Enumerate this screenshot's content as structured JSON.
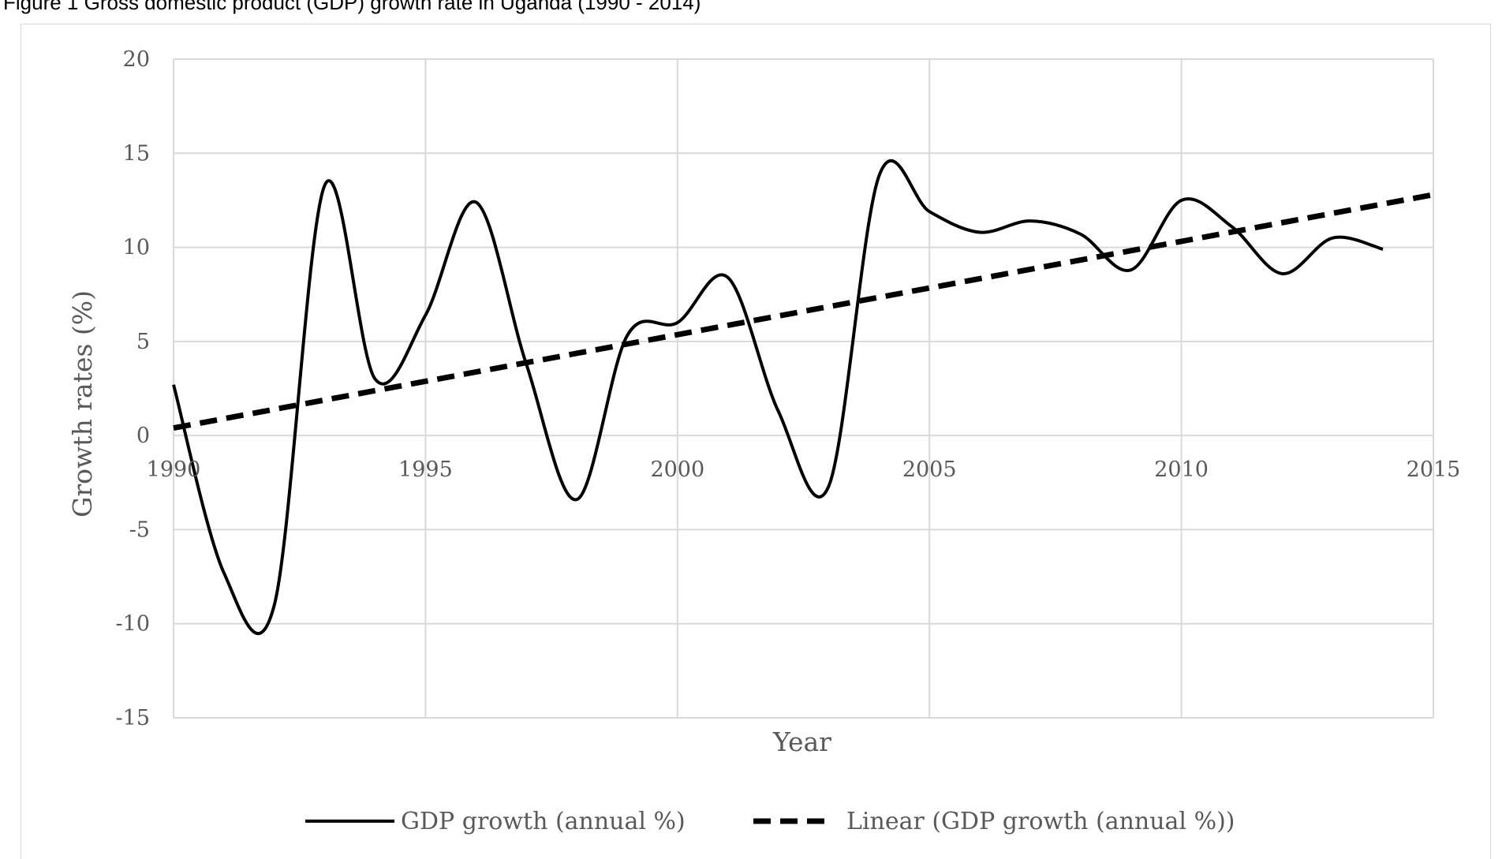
{
  "figure": {
    "caption": "Figure 1 Gross domestic product (GDP) growth rate in Uganda (1990 - 2014)"
  },
  "colors": {
    "grid": "#d9d9d9",
    "series": "#000000",
    "text": "#595959"
  },
  "chart_data": {
    "type": "line",
    "title": "",
    "xlabel": "Year",
    "ylabel": "Growth rates (%)",
    "xlim": [
      1990,
      2015
    ],
    "ylim": [
      -15,
      20
    ],
    "xticks": [
      1990,
      1995,
      2000,
      2005,
      2010,
      2015
    ],
    "yticks": [
      -15,
      -10,
      -5,
      0,
      5,
      10,
      15,
      20
    ],
    "grid": true,
    "legend_position": "bottom",
    "series": [
      {
        "name": "GDP growth (annual %)",
        "style": "solid",
        "x": [
          1990,
          1991,
          1992,
          1993,
          1994,
          1995,
          1996,
          1997,
          1998,
          1999,
          2000,
          2001,
          2002,
          2003,
          2004,
          2005,
          2006,
          2007,
          2008,
          2009,
          2010,
          2011,
          2012,
          2013,
          2014
        ],
        "y": [
          2.7,
          -7.3,
          -9.0,
          13.3,
          3.0,
          6.4,
          12.4,
          3.8,
          -3.4,
          5.3,
          6.0,
          8.4,
          1.3,
          -2.7,
          13.8,
          11.9,
          10.8,
          11.4,
          10.7,
          8.8,
          12.5,
          11.1,
          8.6,
          10.5,
          9.9
        ]
      },
      {
        "name": "Linear (GDP growth (annual %))",
        "style": "dashed",
        "x": [
          1990,
          2015
        ],
        "y": [
          0.4,
          12.8
        ]
      }
    ]
  }
}
